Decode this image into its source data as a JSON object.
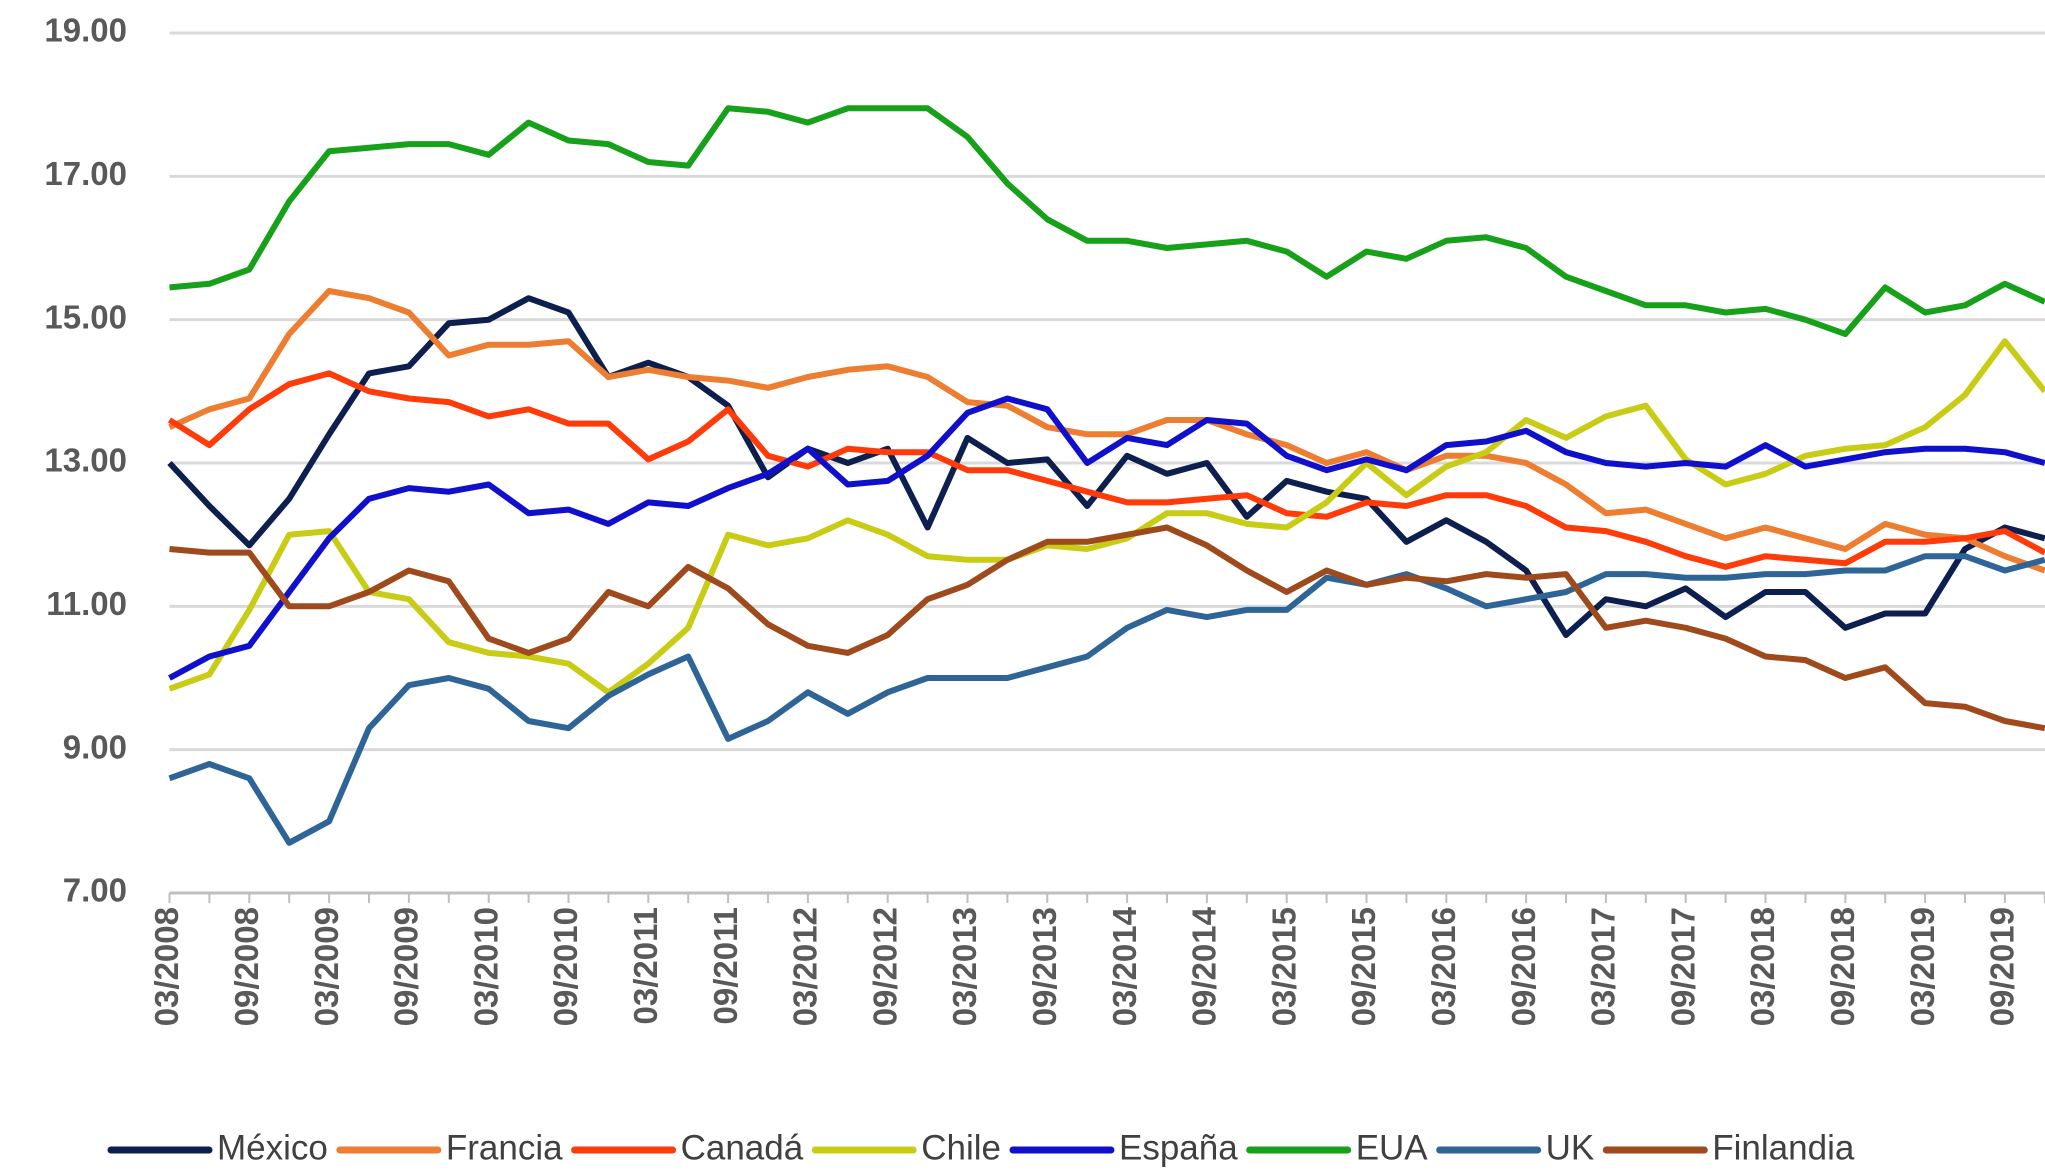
{
  "chart_data": {
    "type": "line",
    "categories": [
      "03/2008",
      null,
      "09/2008",
      null,
      "03/2009",
      null,
      "09/2009",
      null,
      "03/2010",
      null,
      "09/2010",
      null,
      "03/2011",
      null,
      "09/2011",
      null,
      "03/2012",
      null,
      "09/2012",
      null,
      "03/2013",
      null,
      "09/2013",
      null,
      "03/2014",
      null,
      "09/2014",
      null,
      "03/2015",
      null,
      "09/2015",
      null,
      "03/2016",
      null,
      "09/2016",
      null,
      "03/2017",
      null,
      "09/2017",
      null,
      "03/2018",
      null,
      "09/2018",
      null,
      "03/2019",
      null,
      "09/2019",
      null
    ],
    "ylim": [
      7,
      19
    ],
    "yticks": [
      {
        "value": 7,
        "label": "7.00"
      },
      {
        "value": 9,
        "label": "9.00"
      },
      {
        "value": 11,
        "label": "11.00"
      },
      {
        "value": 13,
        "label": "13.00"
      },
      {
        "value": 15,
        "label": "15.00"
      },
      {
        "value": 17,
        "label": "17.00"
      },
      {
        "value": 19,
        "label": "19.00"
      }
    ],
    "grid": true,
    "legend": "bottom",
    "series": [
      {
        "name": "México",
        "color": "#0d1f4f",
        "values": [
          13.0,
          12.4,
          11.85,
          12.5,
          13.4,
          14.25,
          14.35,
          14.95,
          15.0,
          15.3,
          15.1,
          14.2,
          14.4,
          14.2,
          13.8,
          12.8,
          13.2,
          13.0,
          13.2,
          12.1,
          13.35,
          13.0,
          13.05,
          12.4,
          13.1,
          12.85,
          13.0,
          12.25,
          12.75,
          12.6,
          12.5,
          11.9,
          12.2,
          11.9,
          11.5,
          10.6,
          11.1,
          11.0,
          11.25,
          10.85,
          11.2,
          11.2,
          10.7,
          10.9,
          10.9,
          11.8,
          12.1,
          11.95
        ]
      },
      {
        "name": "Francia",
        "color": "#ed7d31",
        "values": [
          13.5,
          13.75,
          13.9,
          14.8,
          15.4,
          15.3,
          15.1,
          14.5,
          14.65,
          14.65,
          14.7,
          14.2,
          14.3,
          14.2,
          14.15,
          14.05,
          14.2,
          14.3,
          14.35,
          14.2,
          13.85,
          13.8,
          13.5,
          13.4,
          13.4,
          13.6,
          13.6,
          13.4,
          13.25,
          13.0,
          13.15,
          12.9,
          13.1,
          13.1,
          13.0,
          12.7,
          12.3,
          12.35,
          12.15,
          11.95,
          12.1,
          11.95,
          11.8,
          12.15,
          12.0,
          11.95,
          11.7,
          11.5
        ]
      },
      {
        "name": "Canadá",
        "color": "#ff3b0a",
        "values": [
          13.6,
          13.25,
          13.75,
          14.1,
          14.25,
          14.0,
          13.9,
          13.85,
          13.65,
          13.75,
          13.55,
          13.55,
          13.05,
          13.3,
          13.75,
          13.1,
          12.95,
          13.2,
          13.15,
          13.15,
          12.9,
          12.9,
          12.75,
          12.6,
          12.45,
          12.45,
          12.5,
          12.55,
          12.3,
          12.25,
          12.45,
          12.4,
          12.55,
          12.55,
          12.4,
          12.1,
          12.05,
          11.9,
          11.7,
          11.55,
          11.7,
          11.65,
          11.6,
          11.9,
          11.9,
          11.95,
          12.05,
          11.75
        ]
      },
      {
        "name": "Chile",
        "color": "#c8cc14",
        "values": [
          9.85,
          10.05,
          10.95,
          12.0,
          12.05,
          11.2,
          11.1,
          10.5,
          10.35,
          10.3,
          10.2,
          9.8,
          10.2,
          10.7,
          12.0,
          11.85,
          11.95,
          12.2,
          12.0,
          11.7,
          11.65,
          11.65,
          11.85,
          11.8,
          11.95,
          12.3,
          12.3,
          12.15,
          12.1,
          12.45,
          13.0,
          12.55,
          12.95,
          13.15,
          13.6,
          13.35,
          13.65,
          13.8,
          13.05,
          12.7,
          12.85,
          13.1,
          13.2,
          13.25,
          13.5,
          13.95,
          14.7,
          14.0
        ]
      },
      {
        "name": "España",
        "color": "#1010cc",
        "values": [
          10.0,
          10.3,
          10.45,
          11.2,
          11.95,
          12.5,
          12.65,
          12.6,
          12.7,
          12.3,
          12.35,
          12.15,
          12.45,
          12.4,
          12.65,
          12.85,
          13.2,
          12.7,
          12.75,
          13.1,
          13.7,
          13.9,
          13.75,
          13.0,
          13.35,
          13.25,
          13.6,
          13.55,
          13.1,
          12.9,
          13.05,
          12.9,
          13.25,
          13.3,
          13.45,
          13.15,
          13.0,
          12.95,
          13.0,
          12.95,
          13.25,
          12.95,
          13.05,
          13.15,
          13.2,
          13.2,
          13.15,
          13.0
        ]
      },
      {
        "name": "EUA",
        "color": "#17a11a",
        "values": [
          15.45,
          15.5,
          15.7,
          16.65,
          17.35,
          17.4,
          17.45,
          17.45,
          17.3,
          17.75,
          17.5,
          17.45,
          17.2,
          17.15,
          17.95,
          17.9,
          17.75,
          17.95,
          17.95,
          17.95,
          17.55,
          16.9,
          16.4,
          16.1,
          16.1,
          16.0,
          16.05,
          16.1,
          15.95,
          15.6,
          15.95,
          15.85,
          16.1,
          16.15,
          16.0,
          15.6,
          15.4,
          15.2,
          15.2,
          15.1,
          15.15,
          15.0,
          14.8,
          15.45,
          15.1,
          15.2,
          15.5,
          15.25
        ]
      },
      {
        "name": "UK",
        "color": "#2e6596",
        "values": [
          8.6,
          8.8,
          8.6,
          7.7,
          8.0,
          9.3,
          9.9,
          10.0,
          9.85,
          9.4,
          9.3,
          9.75,
          10.05,
          10.3,
          9.15,
          9.4,
          9.8,
          9.5,
          9.8,
          10.0,
          10.0,
          10.0,
          10.15,
          10.3,
          10.7,
          10.95,
          10.85,
          10.95,
          10.95,
          11.4,
          11.3,
          11.45,
          11.25,
          11.0,
          11.1,
          11.2,
          11.45,
          11.45,
          11.4,
          11.4,
          11.45,
          11.45,
          11.5,
          11.5,
          11.7,
          11.7,
          11.5,
          11.65
        ]
      },
      {
        "name": "Finlandia",
        "color": "#9e4a1c",
        "values": [
          11.8,
          11.75,
          11.75,
          11.0,
          11.0,
          11.2,
          11.5,
          11.35,
          10.55,
          10.35,
          10.55,
          11.2,
          11.0,
          11.55,
          11.25,
          10.75,
          10.45,
          10.35,
          10.6,
          11.1,
          11.3,
          11.65,
          11.9,
          11.9,
          12.0,
          12.1,
          11.85,
          11.5,
          11.2,
          11.5,
          11.3,
          11.4,
          11.35,
          11.45,
          11.4,
          11.45,
          10.7,
          10.8,
          10.7,
          10.55,
          10.3,
          10.25,
          10.0,
          10.15,
          9.65,
          9.6,
          9.4,
          9.3
        ]
      }
    ]
  }
}
